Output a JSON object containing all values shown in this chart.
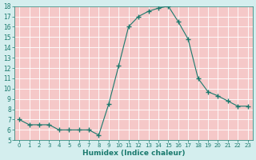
{
  "x": [
    0,
    1,
    2,
    3,
    4,
    5,
    6,
    7,
    8,
    9,
    10,
    11,
    12,
    13,
    14,
    15,
    16,
    17,
    18,
    19,
    20,
    21,
    22,
    23
  ],
  "y": [
    7,
    6.5,
    6.5,
    6.5,
    6,
    6,
    6,
    6,
    5.5,
    8.5,
    12.2,
    16,
    17,
    17.5,
    17.8,
    18,
    16.5,
    14.8,
    11,
    9.7,
    9.3,
    8.8,
    8.3,
    8.3
  ],
  "xlabel": "Humidex (Indice chaleur)",
  "ylim": [
    5,
    18
  ],
  "xlim": [
    -0.5,
    23.5
  ],
  "yticks": [
    5,
    6,
    7,
    8,
    9,
    10,
    11,
    12,
    13,
    14,
    15,
    16,
    17,
    18
  ],
  "xticks": [
    0,
    1,
    2,
    3,
    4,
    5,
    6,
    7,
    8,
    9,
    10,
    11,
    12,
    13,
    14,
    15,
    16,
    17,
    18,
    19,
    20,
    21,
    22,
    23
  ],
  "line_color": "#1a7a6e",
  "marker_color": "#1a7a6e",
  "plot_bg_color": "#f5c8c8",
  "outer_bg_color": "#d4eeee",
  "grid_color": "#ffffff",
  "tick_label_color": "#1a7a6e",
  "xlabel_color": "#1a7a6e",
  "xlabel_fontsize": 6.5,
  "ytick_fontsize": 5.5,
  "xtick_fontsize": 5.0
}
